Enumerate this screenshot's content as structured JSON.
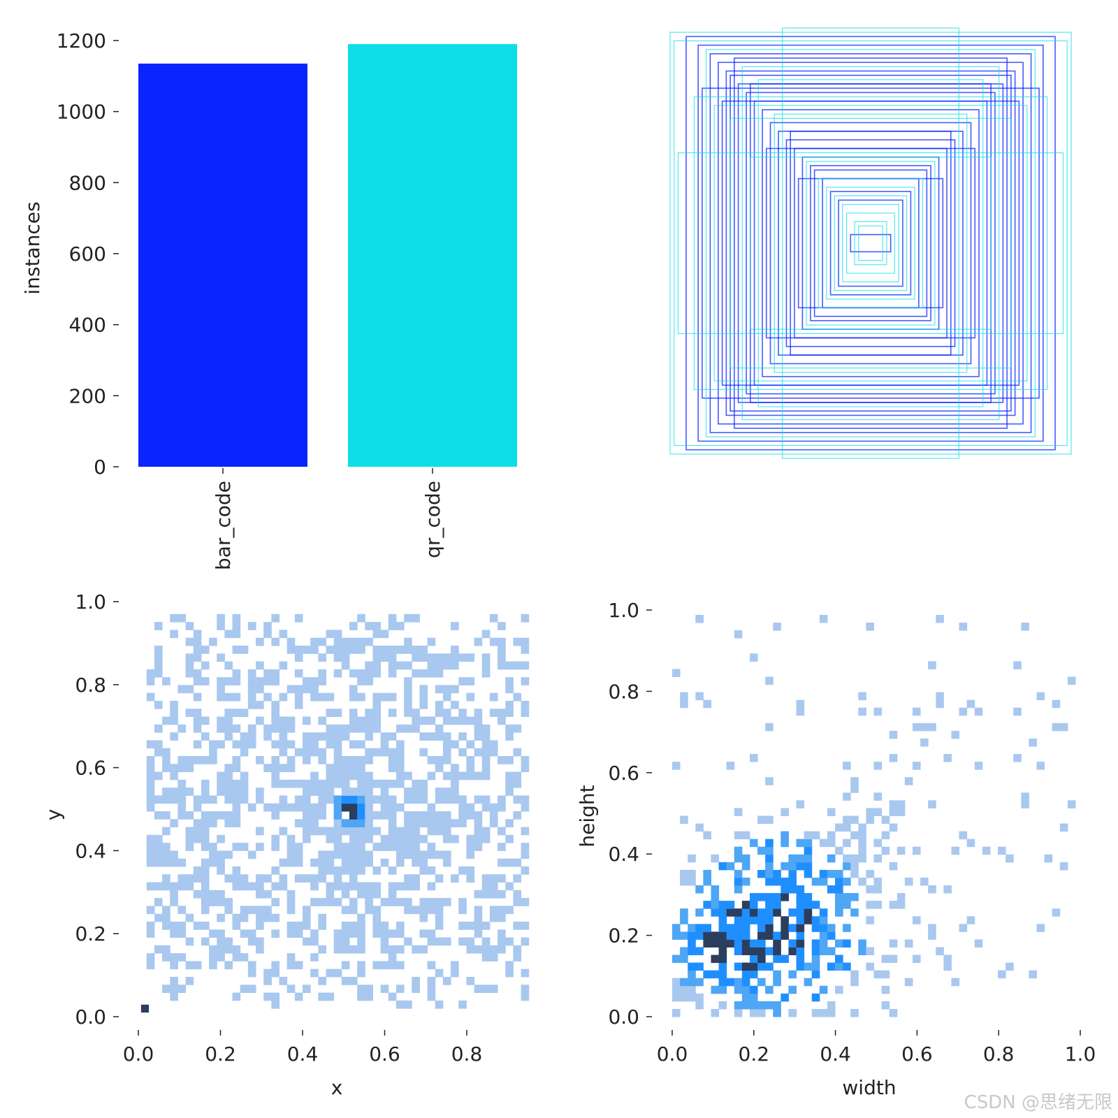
{
  "watermark": "CSDN @思绪无限",
  "colors": {
    "bar_code": "#0a24ff",
    "qr_code": "#0cdde8",
    "hist_light": "#a9c8ef",
    "hist_mid": "#4ea6f5",
    "hist_strong": "#1f8fff",
    "hist_dark": "#2c3e5e"
  },
  "chart_data": [
    {
      "type": "bar",
      "categories": [
        "bar_code",
        "qr_code"
      ],
      "values": [
        1135,
        1190
      ],
      "ylabel": "instances",
      "ylim": [
        0,
        1200
      ],
      "yticks": [
        "0",
        "200",
        "400",
        "600",
        "800",
        "1000",
        "1200"
      ],
      "grid": false
    },
    {
      "type": "box-overlay",
      "description_series": [
        "bar_code",
        "qr_code"
      ],
      "note_axes": "none",
      "boxes": [
        {
          "cls": 0,
          "w": 0.92,
          "h": 0.96
        },
        {
          "cls": 0,
          "w": 0.86,
          "h": 0.92
        },
        {
          "cls": 0,
          "w": 0.8,
          "h": 0.88
        },
        {
          "cls": 0,
          "w": 0.76,
          "h": 0.84
        },
        {
          "cls": 0,
          "w": 0.72,
          "h": 0.8
        },
        {
          "cls": 0,
          "w": 0.7,
          "h": 0.78
        },
        {
          "cls": 0,
          "w": 0.66,
          "h": 0.74
        },
        {
          "cls": 0,
          "w": 0.62,
          "h": 0.7
        },
        {
          "cls": 0,
          "w": 0.58,
          "h": 0.66
        },
        {
          "cls": 0,
          "w": 0.54,
          "h": 0.62
        },
        {
          "cls": 0,
          "w": 0.5,
          "h": 0.56
        },
        {
          "cls": 0,
          "w": 0.46,
          "h": 0.52
        },
        {
          "cls": 0,
          "w": 0.42,
          "h": 0.48
        },
        {
          "cls": 0,
          "w": 0.38,
          "h": 0.44
        },
        {
          "cls": 0,
          "w": 0.34,
          "h": 0.4
        },
        {
          "cls": 0,
          "w": 0.3,
          "h": 0.36
        },
        {
          "cls": 0,
          "w": 0.28,
          "h": 0.34
        },
        {
          "cls": 0,
          "w": 0.24,
          "h": 0.3
        },
        {
          "cls": 0,
          "w": 0.2,
          "h": 0.24
        },
        {
          "cls": 0,
          "w": 0.16,
          "h": 0.2
        },
        {
          "cls": 0,
          "w": 0.1,
          "h": 0.04
        },
        {
          "cls": 0,
          "w": 0.84,
          "h": 0.72
        },
        {
          "cls": 0,
          "w": 0.68,
          "h": 0.86
        },
        {
          "cls": 0,
          "w": 0.74,
          "h": 0.66
        },
        {
          "cls": 0,
          "w": 0.6,
          "h": 0.74
        },
        {
          "cls": 0,
          "w": 0.52,
          "h": 0.44
        },
        {
          "cls": 0,
          "w": 0.4,
          "h": 0.52
        },
        {
          "cls": 0,
          "w": 0.36,
          "h": 0.3
        },
        {
          "cls": 1,
          "w": 1.0,
          "h": 0.98
        },
        {
          "cls": 1,
          "w": 0.98,
          "h": 0.94
        },
        {
          "cls": 1,
          "w": 0.44,
          "h": 1.0
        },
        {
          "cls": 1,
          "w": 0.96,
          "h": 0.42
        },
        {
          "cls": 1,
          "w": 0.82,
          "h": 0.9
        },
        {
          "cls": 1,
          "w": 0.64,
          "h": 0.82
        },
        {
          "cls": 1,
          "w": 0.56,
          "h": 0.76
        },
        {
          "cls": 1,
          "w": 0.26,
          "h": 0.3
        },
        {
          "cls": 1,
          "w": 0.22,
          "h": 0.26
        },
        {
          "cls": 1,
          "w": 0.18,
          "h": 0.22
        },
        {
          "cls": 1,
          "w": 0.14,
          "h": 0.18
        },
        {
          "cls": 1,
          "w": 0.12,
          "h": 0.14
        },
        {
          "cls": 1,
          "w": 0.08,
          "h": 0.1
        },
        {
          "cls": 1,
          "w": 0.06,
          "h": 0.08
        },
        {
          "cls": 1,
          "w": 0.32,
          "h": 0.38
        },
        {
          "cls": 1,
          "w": 0.48,
          "h": 0.6
        },
        {
          "cls": 1,
          "w": 0.78,
          "h": 0.64
        },
        {
          "cls": 1,
          "w": 0.88,
          "h": 0.68
        },
        {
          "cls": 1,
          "w": 0.7,
          "h": 0.58
        },
        {
          "cls": 1,
          "w": 0.6,
          "h": 0.4
        }
      ]
    },
    {
      "type": "heatmap",
      "xlabel": "x",
      "ylabel": "y",
      "xlim": [
        0,
        0.96
      ],
      "ylim": [
        0,
        1.0
      ],
      "xticks": [
        "0.0",
        "0.2",
        "0.4",
        "0.6",
        "0.8"
      ],
      "yticks": [
        "0.0",
        "0.2",
        "0.4",
        "0.6",
        "0.8",
        "1.0"
      ],
      "bin_size": 0.019,
      "peak": {
        "x": 0.51,
        "y": 0.49
      },
      "outlier": {
        "x": 0.01,
        "y": 0.01
      },
      "grid": false
    },
    {
      "type": "heatmap",
      "xlabel": "width",
      "ylabel": "height",
      "xlim": [
        0,
        1.0
      ],
      "ylim": [
        0,
        1.0
      ],
      "xticks": [
        "0.0",
        "0.2",
        "0.4",
        "0.6",
        "0.8",
        "1.0"
      ],
      "yticks": [
        "0.0",
        "0.2",
        "0.4",
        "0.6",
        "0.8",
        "1.0"
      ],
      "bin_size": 0.019,
      "peak": {
        "x": 0.09,
        "y": 0.15
      },
      "grid": false
    }
  ]
}
